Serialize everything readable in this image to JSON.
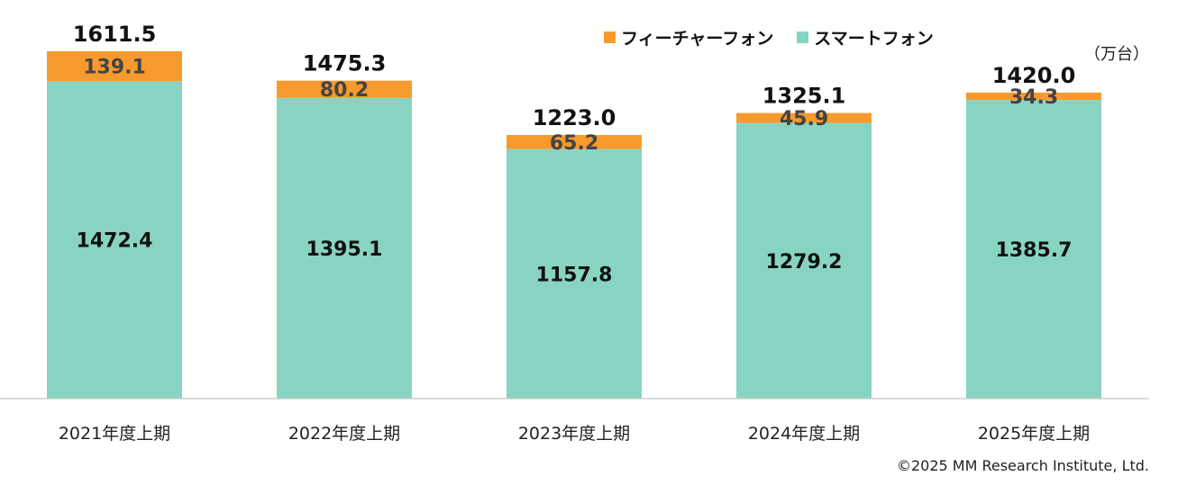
{
  "chart_data": {
    "type": "bar",
    "stacked": true,
    "categories": [
      "2021年度上期",
      "2022年度上期",
      "2023年度上期",
      "2024年度上期",
      "2025年度上期"
    ],
    "series": [
      {
        "name": "スマートフォン",
        "values": [
          1472.4,
          1395.1,
          1157.8,
          1279.2,
          1385.7
        ],
        "value_labels": [
          "1472.4",
          "1395.1",
          "1157.8",
          "1279.2",
          "1385.7"
        ],
        "color": "#88d4c3"
      },
      {
        "name": "フィーチャーフォン",
        "values": [
          139.1,
          80.2,
          65.2,
          45.9,
          34.3
        ],
        "value_labels": [
          "139.1",
          "80.2",
          "65.2",
          "45.9",
          "34.3"
        ],
        "color": "#f79a2e"
      }
    ],
    "totals": [
      1611.5,
      1475.3,
      1223.0,
      1325.1,
      1420.0
    ],
    "total_labels": [
      "1611.5",
      "1475.3",
      "1223.0",
      "1325.1",
      "1420.0"
    ],
    "unit": "（万台）",
    "legend_order": [
      "フィーチャーフォン",
      "スマートフォン"
    ],
    "legend_position": "top-right",
    "grid": false,
    "ylim": [
      0,
      1611.5
    ]
  },
  "copyright": "©2025 MM Research Institute, Ltd."
}
